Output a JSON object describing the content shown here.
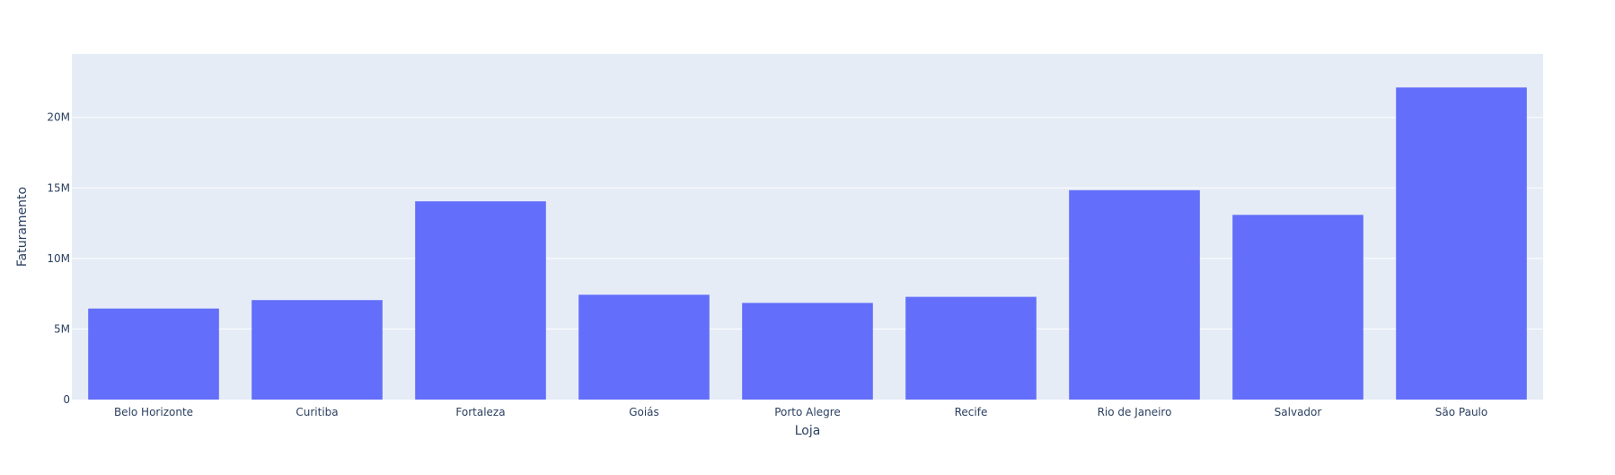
{
  "chart_data": {
    "type": "bar",
    "title": "",
    "xlabel": "Loja",
    "ylabel": "Faturamento",
    "categories": [
      "Belo Horizonte",
      "Curitiba",
      "Fortaleza",
      "Goiás",
      "Porto Alegre",
      "Recife",
      "Rio de Janeiro",
      "Salvador",
      "São Paulo"
    ],
    "values": [
      6450000,
      7050000,
      14050000,
      7430000,
      6850000,
      7280000,
      14840000,
      13090000,
      22120000
    ],
    "ylim": [
      0,
      24500000
    ],
    "y_ticks": [
      0,
      5000000,
      10000000,
      15000000,
      20000000
    ],
    "y_tick_labels": [
      "0",
      "5M",
      "10M",
      "15M",
      "20M"
    ],
    "grid": true,
    "colors": {
      "bar": "#636efa",
      "plot_background": "#e5ecf6",
      "grid": "#ffffff",
      "text": "#2a3f5f"
    }
  }
}
